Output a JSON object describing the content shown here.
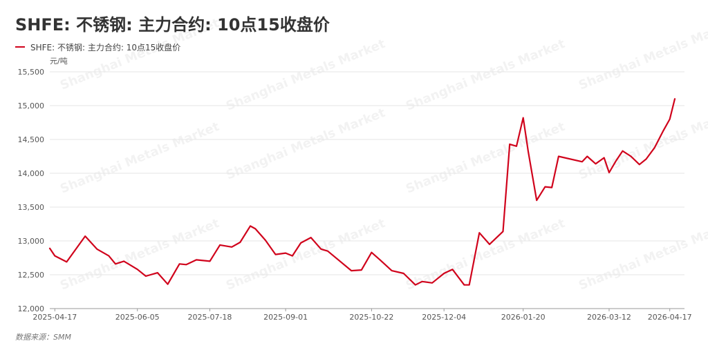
{
  "title": "SHFE: 不锈钢: 主力合约: 10点15收盘价",
  "legend_label": "SHFE: 不锈钢: 主力合约: 10点15收盘价",
  "unit": "元/吨",
  "source": "数据来源：SMM",
  "watermark": "Shanghai Metals Market",
  "colors": {
    "series": "#d0021b",
    "grid": "#e6e6e6",
    "axis": "#999999"
  },
  "chart_data": {
    "type": "line",
    "title": "SHFE: 不锈钢: 主力合约: 10点15收盘价",
    "ylabel": "元/吨",
    "ylim": [
      12000,
      15500
    ],
    "yticks": [
      "12,000",
      "12,500",
      "13,000",
      "13,500",
      "14,000",
      "14,500",
      "15,000",
      "15,500"
    ],
    "xlabels": [
      "2025-04-17",
      "2025-06-05",
      "2025-07-18",
      "2025-09-01",
      "2025-10-22",
      "2025-12-04",
      "2026-01-20",
      "2026-03-12",
      "2026-04-17"
    ],
    "grid": true,
    "legend": "top-left",
    "series": [
      {
        "name": "SHFE: 不锈钢: 主力合约: 10点15收盘价",
        "x": [
          "2025-04-14",
          "2025-04-17",
          "2025-04-24",
          "2025-05-05",
          "2025-05-12",
          "2025-05-19",
          "2025-05-23",
          "2025-05-28",
          "2025-06-05",
          "2025-06-10",
          "2025-06-17",
          "2025-06-23",
          "2025-06-30",
          "2025-07-04",
          "2025-07-10",
          "2025-07-18",
          "2025-07-24",
          "2025-07-31",
          "2025-08-05",
          "2025-08-11",
          "2025-08-14",
          "2025-08-20",
          "2025-08-26",
          "2025-09-01",
          "2025-09-05",
          "2025-09-10",
          "2025-09-16",
          "2025-09-22",
          "2025-09-26",
          "2025-10-10",
          "2025-10-16",
          "2025-10-22",
          "2025-10-27",
          "2025-11-03",
          "2025-11-10",
          "2025-11-17",
          "2025-11-21",
          "2025-11-27",
          "2025-12-04",
          "2025-12-09",
          "2025-12-16",
          "2025-12-19",
          "2025-12-25",
          "2025-12-31",
          "2026-01-08",
          "2026-01-12",
          "2026-01-16",
          "2026-01-20",
          "2026-01-23",
          "2026-01-28",
          "2026-02-02",
          "2026-02-06",
          "2026-02-10",
          "2026-02-24",
          "2026-02-27",
          "2026-03-04",
          "2026-03-09",
          "2026-03-12",
          "2026-03-16",
          "2026-03-20",
          "2026-03-25",
          "2026-03-30",
          "2026-04-03",
          "2026-04-08",
          "2026-04-13",
          "2026-04-17",
          "2026-04-20"
        ],
        "y": [
          12890,
          12780,
          12690,
          13070,
          12880,
          12780,
          12660,
          12700,
          12580,
          12480,
          12530,
          12360,
          12660,
          12650,
          12720,
          12700,
          12940,
          12910,
          12980,
          13220,
          13180,
          13010,
          12800,
          12820,
          12780,
          12970,
          13050,
          12880,
          12850,
          12560,
          12570,
          12830,
          12720,
          12560,
          12520,
          12350,
          12400,
          12380,
          12520,
          12580,
          12350,
          12350,
          13120,
          12950,
          13140,
          14430,
          14400,
          14820,
          14320,
          13600,
          13800,
          13790,
          14250,
          14170,
          14250,
          14140,
          14230,
          14010,
          14180,
          14330,
          14250,
          14130,
          14210,
          14380,
          14620,
          14800,
          15100
        ]
      }
    ]
  }
}
